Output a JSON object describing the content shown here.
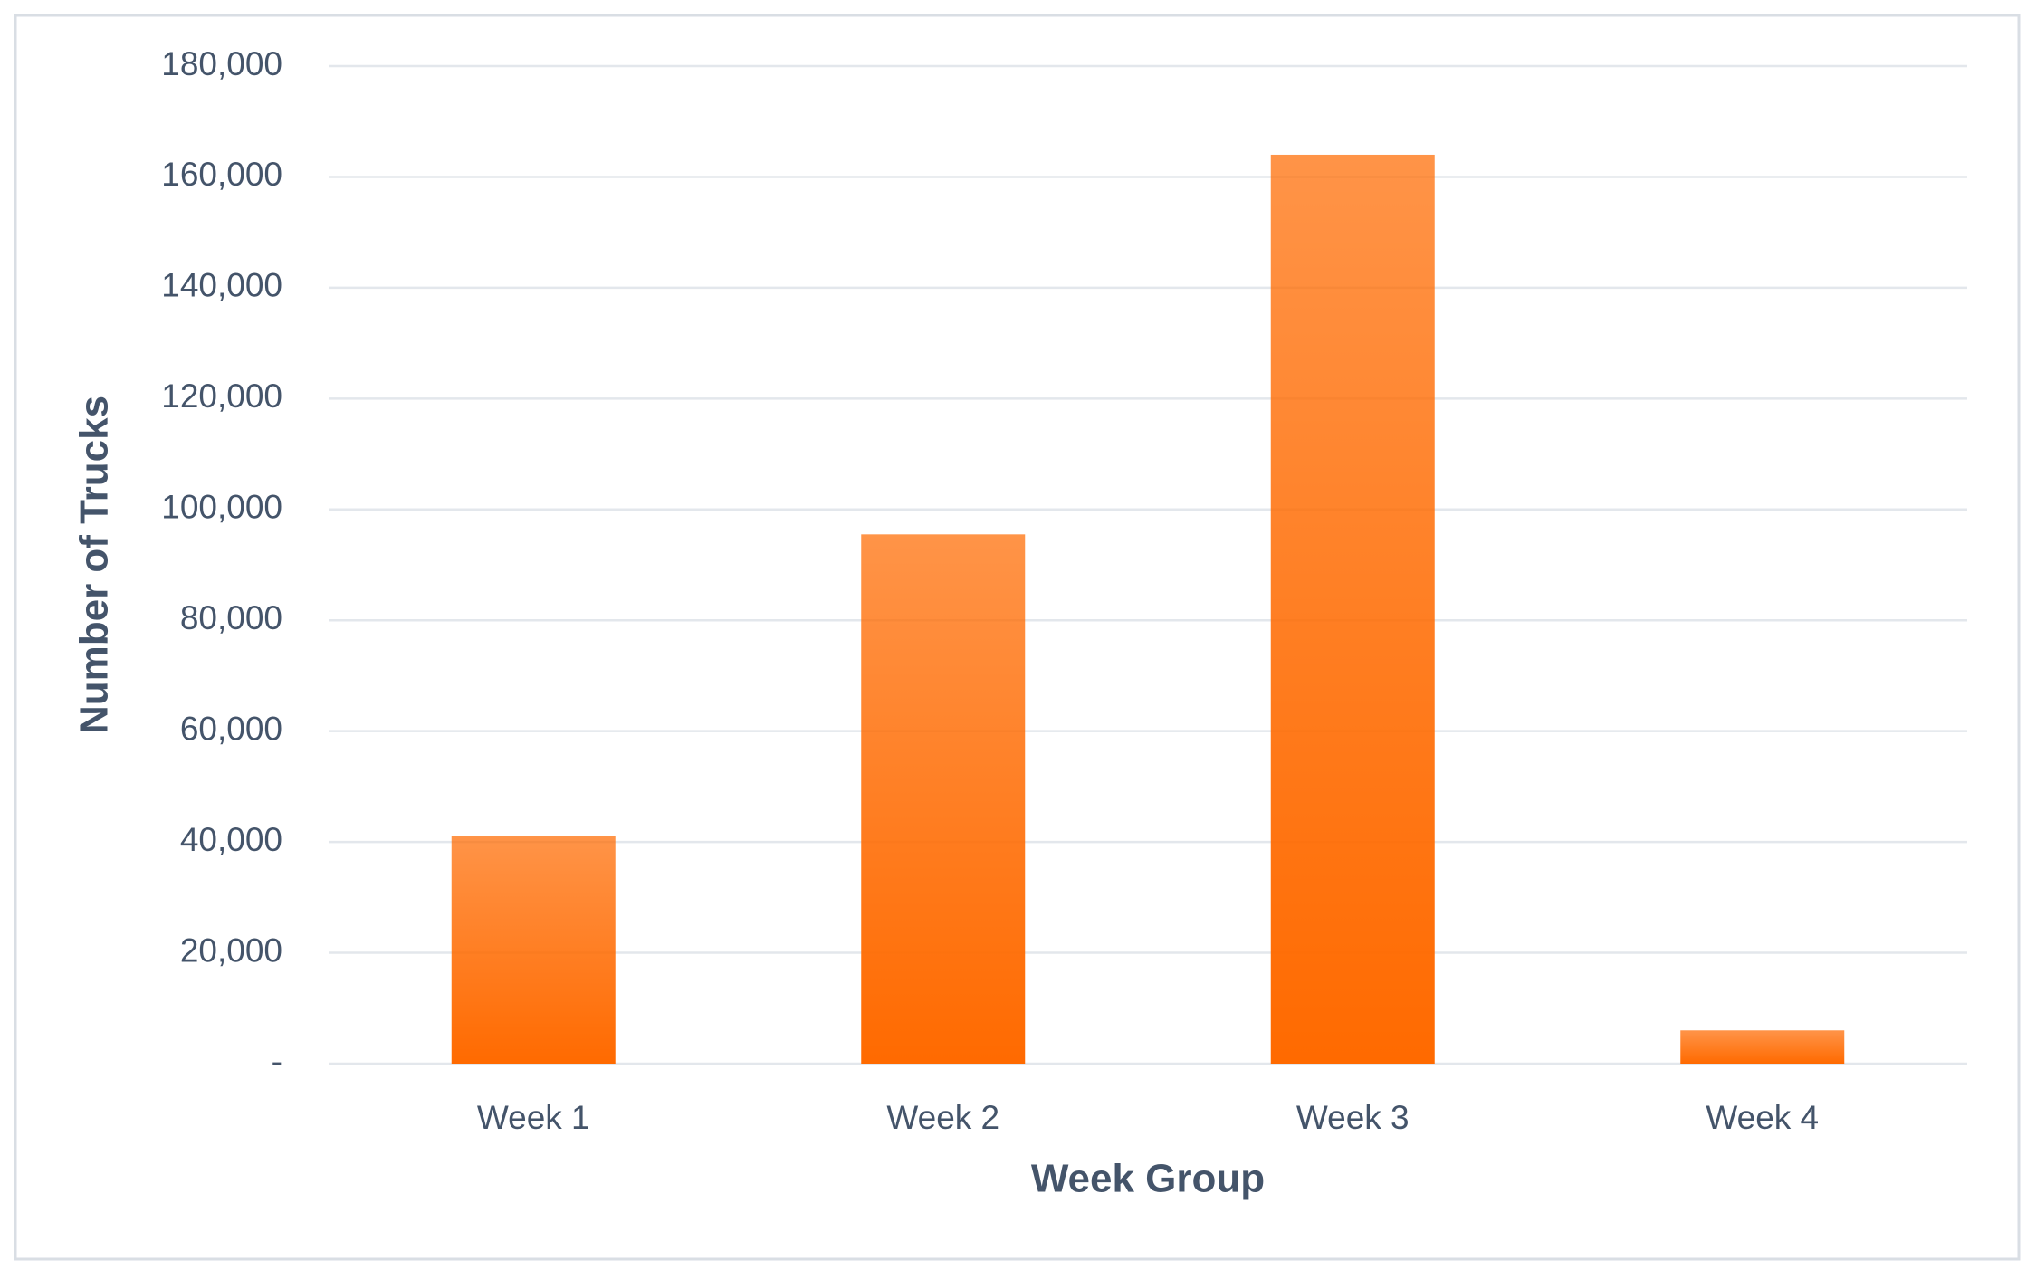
{
  "chart_data": {
    "type": "bar",
    "x_label": "Week Group",
    "y_label": "Number of Trucks",
    "categories": [
      "Week 1",
      "Week 2",
      "Week 3",
      "Week 4"
    ],
    "values": [
      41000,
      95500,
      164000,
      6000
    ],
    "color": "#ff6a00",
    "ylim": [
      0,
      180000
    ],
    "yticks": [
      {
        "value": 0,
        "label": "-"
      },
      {
        "value": 20000,
        "label": "20,000"
      },
      {
        "value": 40000,
        "label": "40,000"
      },
      {
        "value": 60000,
        "label": "60,000"
      },
      {
        "value": 80000,
        "label": "80,000"
      },
      {
        "value": 100000,
        "label": "100,000"
      },
      {
        "value": 120000,
        "label": "120,000"
      },
      {
        "value": 140000,
        "label": "140,000"
      },
      {
        "value": 160000,
        "label": "160,000"
      },
      {
        "value": 180000,
        "label": "180,000"
      }
    ],
    "grid": true
  }
}
